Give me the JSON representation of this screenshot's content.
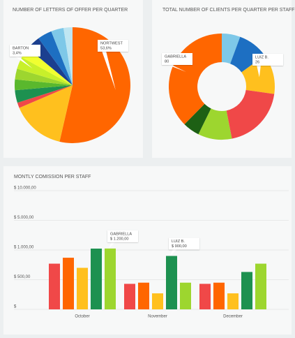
{
  "chart_data": [
    {
      "type": "pie",
      "title": "NUMBER OF LETTERS OF OFFER  PER QUARTER",
      "categories": [
        "NORTWEST",
        null,
        null,
        null,
        null,
        null,
        "BARTON",
        null,
        null,
        null,
        null,
        null
      ],
      "values": [
        53.6,
        15,
        1.5,
        3.5,
        3,
        3,
        3.4,
        3,
        4,
        4,
        3.5,
        2.5
      ],
      "value_labels": [
        "53,6%",
        null,
        null,
        null,
        null,
        null,
        "3,4%",
        null,
        null,
        null,
        null,
        null
      ],
      "colors": [
        "#ff6600",
        "#ffc01e",
        "#f04848",
        "#1d9150",
        "#5ab82d",
        "#9dd62f",
        "#c8f02a",
        "#f0ff30",
        "#1b3f8f",
        "#1d6fc2",
        "#7ec8e8",
        "#bfe6f2"
      ]
    },
    {
      "type": "donut",
      "title": "TOTAL NUMBER OF CLIENTS PER QUARTER PER STAFF",
      "categories": [
        null,
        null,
        "LUIZ B.",
        null,
        null,
        null,
        "GABRIELLA"
      ],
      "values": [
        12,
        20,
        26,
        42,
        22,
        11,
        80
      ],
      "colors": [
        "#7ec8e8",
        "#1d6fc2",
        "#ffc01e",
        "#f04848",
        "#9dd62f",
        "#1d6014",
        "#ff6600"
      ]
    },
    {
      "type": "bar",
      "title": "MONTLY COMISSION PER STAFF",
      "categories": [
        "October",
        "November",
        "December"
      ],
      "ylim": [
        0,
        10000
      ],
      "yscale": "piecewise",
      "grid": true,
      "yticks": [
        {
          "value": 0,
          "label": "$"
        },
        {
          "value": 500,
          "label": "$ 500,00"
        },
        {
          "value": 1000,
          "label": "$ 1.000,00"
        },
        {
          "value": 5000,
          "label": "$ 5.000,00"
        },
        {
          "value": 10000,
          "label": "$ 10.000,00"
        }
      ],
      "series": [
        {
          "name": null,
          "color": "#f04848",
          "values": [
            770,
            430,
            430
          ]
        },
        {
          "name": null,
          "color": "#ff6600",
          "values": [
            870,
            450,
            450
          ]
        },
        {
          "name": null,
          "color": "#ffc01e",
          "values": [
            700,
            270,
            270
          ]
        },
        {
          "name": "LUIZ B.",
          "color": "#1d9150",
          "values": [
            1190,
            900,
            630
          ],
          "value_labels": [
            null,
            "$ 900,00",
            null
          ]
        },
        {
          "name": "GABRIELLA",
          "color": "#9dd62f",
          "values": [
            1200,
            450,
            770
          ],
          "value_labels": [
            "$ 1.200,00",
            null,
            null
          ]
        }
      ]
    }
  ]
}
